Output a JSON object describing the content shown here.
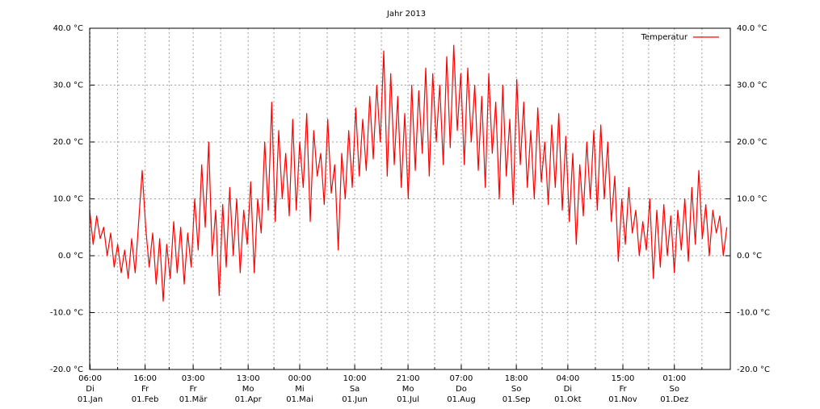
{
  "chart_data": {
    "type": "line",
    "title": "Jahr 2013",
    "xlim": [
      0,
      366
    ],
    "ylim": [
      -20,
      40
    ],
    "yticks": [
      {
        "value": -20,
        "label": "-20.0 °C"
      },
      {
        "value": -10,
        "label": "-10.0 °C"
      },
      {
        "value": 0,
        "label": "0.0 °C"
      },
      {
        "value": 10,
        "label": "10.0 °C"
      },
      {
        "value": 20,
        "label": "20.0 °C"
      },
      {
        "value": 30,
        "label": "30.0 °C"
      },
      {
        "value": 40,
        "label": "40.0 °C"
      }
    ],
    "y2lim": [
      -20,
      40
    ],
    "y2ticks": [
      {
        "value": -20,
        "label": "-20.0 °C"
      },
      {
        "value": -10,
        "label": "-10.0 °C"
      },
      {
        "value": 0,
        "label": "0.0 °C"
      },
      {
        "value": 10,
        "label": "10.0 °C"
      },
      {
        "value": 20,
        "label": "20.0 °C"
      },
      {
        "value": 30,
        "label": "30.0 °C"
      },
      {
        "value": 40,
        "label": "40.0 °C"
      }
    ],
    "xticks": [
      {
        "value": 0.25,
        "label": [
          "06:00",
          "Di",
          "01.Jan"
        ]
      },
      {
        "value": 31.667,
        "label": [
          "16:00",
          "Fr",
          "01.Feb"
        ]
      },
      {
        "value": 59.125,
        "label": [
          "03:00",
          "Fr",
          "01.Mär"
        ]
      },
      {
        "value": 90.542,
        "label": [
          "13:00",
          "Mo",
          "01.Apr"
        ]
      },
      {
        "value": 120,
        "label": [
          "00:00",
          "Mi",
          "01.Mai"
        ]
      },
      {
        "value": 151.417,
        "label": [
          "10:00",
          "Sa",
          "01.Jun"
        ]
      },
      {
        "value": 181.875,
        "label": [
          "21:00",
          "Mo",
          "01.Jul"
        ]
      },
      {
        "value": 212.292,
        "label": [
          "07:00",
          "Do",
          "01.Aug"
        ]
      },
      {
        "value": 243.75,
        "label": [
          "18:00",
          "So",
          "01.Sep"
        ]
      },
      {
        "value": 273.167,
        "label": [
          "04:00",
          "Di",
          "01.Okt"
        ]
      },
      {
        "value": 304.625,
        "label": [
          "15:00",
          "Fr",
          "01.Nov"
        ]
      },
      {
        "value": 334.042,
        "label": [
          "01:00",
          "So",
          "01.Dez"
        ]
      }
    ],
    "xminorticks": [
      15.96,
      45.4,
      74.83,
      105.27,
      135.71,
      166.65,
      197.08,
      228.02,
      258.46,
      288.9,
      319.33,
      349.77
    ],
    "grid": true,
    "legend": "top-right",
    "x": [
      0,
      2,
      4,
      6,
      8,
      10,
      12,
      14,
      16,
      18,
      20,
      22,
      24,
      26,
      28,
      30,
      32,
      34,
      36,
      38,
      40,
      42,
      44,
      46,
      48,
      50,
      52,
      54,
      56,
      58,
      60,
      62,
      64,
      66,
      68,
      70,
      72,
      74,
      76,
      78,
      80,
      82,
      84,
      86,
      88,
      90,
      92,
      94,
      96,
      98,
      100,
      102,
      104,
      106,
      108,
      110,
      112,
      114,
      116,
      118,
      120,
      122,
      124,
      126,
      128,
      130,
      132,
      134,
      136,
      138,
      140,
      142,
      144,
      146,
      148,
      150,
      152,
      154,
      156,
      158,
      160,
      162,
      164,
      166,
      168,
      170,
      172,
      174,
      176,
      178,
      180,
      182,
      184,
      186,
      188,
      190,
      192,
      194,
      196,
      198,
      200,
      202,
      204,
      206,
      208,
      210,
      212,
      214,
      216,
      218,
      220,
      222,
      224,
      226,
      228,
      230,
      232,
      234,
      236,
      238,
      240,
      242,
      244,
      246,
      248,
      250,
      252,
      254,
      256,
      258,
      260,
      262,
      264,
      266,
      268,
      270,
      272,
      274,
      276,
      278,
      280,
      282,
      284,
      286,
      288,
      290,
      292,
      294,
      296,
      298,
      300,
      302,
      304,
      306,
      308,
      310,
      312,
      314,
      316,
      318,
      320,
      322,
      324,
      326,
      328,
      330,
      332,
      334,
      336,
      338,
      340,
      342,
      344,
      346,
      348,
      350,
      352,
      354,
      356,
      358,
      360,
      362,
      364
    ],
    "series": [
      {
        "name": "Temperatur",
        "color": "#ff0000",
        "values": [
          8,
          2,
          7,
          3,
          5,
          0,
          4,
          -2,
          2,
          -3,
          1,
          -4,
          3,
          -3,
          6,
          15,
          5,
          -2,
          4,
          -5,
          3,
          -8,
          2,
          -4,
          6,
          -3,
          5,
          -5,
          4,
          -2,
          10,
          1,
          16,
          5,
          20,
          0,
          8,
          -7,
          9,
          -2,
          12,
          0,
          10,
          -3,
          8,
          2,
          13,
          -3,
          10,
          4,
          20,
          8,
          27,
          6,
          22,
          10,
          18,
          7,
          24,
          8,
          20,
          12,
          25,
          6,
          22,
          14,
          18,
          9,
          24,
          11,
          16,
          1,
          18,
          10,
          22,
          12,
          26,
          14,
          24,
          15,
          28,
          17,
          30,
          20,
          36,
          14,
          32,
          16,
          28,
          12,
          25,
          10,
          30,
          15,
          29,
          18,
          33,
          14,
          32,
          20,
          30,
          16,
          35,
          19,
          37,
          22,
          32,
          16,
          33,
          20,
          30,
          15,
          28,
          12,
          32,
          18,
          27,
          10,
          30,
          14,
          24,
          9,
          31,
          16,
          27,
          12,
          22,
          10,
          26,
          13,
          20,
          9,
          23,
          12,
          25,
          8,
          21,
          6,
          18,
          2,
          16,
          7,
          20,
          10,
          22,
          8,
          23,
          10,
          20,
          6,
          14,
          -1,
          10,
          2,
          12,
          4,
          8,
          0,
          6,
          1,
          10,
          -4,
          8,
          -2,
          9,
          0,
          7,
          -3,
          8,
          1,
          10,
          -1,
          12,
          2,
          15,
          3,
          9,
          0,
          8,
          4,
          7,
          0,
          5
        ]
      }
    ]
  }
}
